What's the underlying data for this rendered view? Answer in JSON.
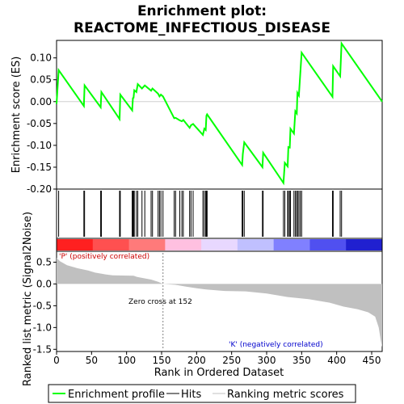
{
  "chart_data": {
    "type": "line",
    "title_line1": "Enrichment plot:",
    "title_line2": "REACTOME_INFECTIOUS_DISEASE",
    "es_panel": {
      "ylabel": "Enrichment score (ES)",
      "ylim": [
        -0.2,
        0.14
      ],
      "yticks": [
        -0.2,
        -0.15,
        -0.1,
        -0.05,
        0.0,
        0.05,
        0.1
      ],
      "ytick_labels": [
        "-0.20",
        "-0.15",
        "-0.10",
        "-0.05",
        "0.00",
        "0.05",
        "0.10"
      ],
      "line_color": "#00ff00",
      "points": [
        [
          0,
          -0.005
        ],
        [
          3,
          0.072
        ],
        [
          39,
          -0.01
        ],
        [
          40,
          0.037
        ],
        [
          63,
          -0.013
        ],
        [
          64,
          0.022
        ],
        [
          90,
          -0.04
        ],
        [
          91,
          0.016
        ],
        [
          108,
          -0.02
        ],
        [
          109,
          0.008
        ],
        [
          110,
          0.009
        ],
        [
          111,
          0.026
        ],
        [
          114,
          0.022
        ],
        [
          116,
          0.04
        ],
        [
          122,
          0.03
        ],
        [
          126,
          0.037
        ],
        [
          135,
          0.025
        ],
        [
          137,
          0.03
        ],
        [
          145,
          0.018
        ],
        [
          147,
          0.012
        ],
        [
          149,
          0.016
        ],
        [
          152,
          0.012
        ],
        [
          168,
          -0.038
        ],
        [
          170,
          -0.037
        ],
        [
          176,
          -0.043
        ],
        [
          179,
          -0.045
        ],
        [
          181,
          -0.042
        ],
        [
          190,
          -0.06
        ],
        [
          192,
          -0.054
        ],
        [
          195,
          -0.051
        ],
        [
          209,
          -0.076
        ],
        [
          211,
          -0.062
        ],
        [
          213,
          -0.065
        ],
        [
          214,
          -0.032
        ],
        [
          215,
          -0.029
        ],
        [
          265,
          -0.145
        ],
        [
          266,
          -0.12
        ],
        [
          268,
          -0.093
        ],
        [
          294,
          -0.15
        ],
        [
          295,
          -0.117
        ],
        [
          324,
          -0.186
        ],
        [
          326,
          -0.14
        ],
        [
          330,
          -0.148
        ],
        [
          331,
          -0.104
        ],
        [
          333,
          -0.105
        ],
        [
          334,
          -0.062
        ],
        [
          339,
          -0.073
        ],
        [
          341,
          -0.022
        ],
        [
          343,
          -0.027
        ],
        [
          344,
          0.02
        ],
        [
          346,
          0.014
        ],
        [
          348,
          0.063
        ],
        [
          350,
          0.112
        ],
        [
          394,
          0.011
        ],
        [
          395,
          0.081
        ],
        [
          405,
          0.058
        ],
        [
          407,
          0.133
        ],
        [
          465,
          0.0
        ]
      ]
    },
    "hits": [
      3,
      39,
      40,
      63,
      64,
      90,
      91,
      108,
      109,
      110,
      111,
      114,
      116,
      122,
      126,
      135,
      137,
      145,
      147,
      149,
      152,
      168,
      170,
      176,
      179,
      181,
      190,
      192,
      195,
      209,
      211,
      213,
      214,
      215,
      265,
      266,
      268,
      294,
      295,
      324,
      326,
      330,
      331,
      333,
      334,
      339,
      341,
      343,
      344,
      346,
      348,
      350,
      394,
      395,
      405,
      407
    ],
    "ranking_panel": {
      "ylabel": "Ranked list metric (Signal2Noise)",
      "ylim": [
        -1.55,
        0.75
      ],
      "yticks": [
        -1.5,
        -1.0,
        -0.5,
        0.0,
        0.5
      ],
      "ytick_labels": [
        "-1.5",
        "-1.0",
        "-0.5",
        "0.0",
        "0.5"
      ],
      "positive_label": "'P' (positively correlated)",
      "negative_label": "'K' (negatively correlated)",
      "zero_cross_label": "Zero cross at 152",
      "zero_cross": 152,
      "metric_profile": [
        [
          0,
          0.6
        ],
        [
          5,
          0.52
        ],
        [
          15,
          0.43
        ],
        [
          30,
          0.36
        ],
        [
          45,
          0.31
        ],
        [
          55,
          0.26
        ],
        [
          70,
          0.22
        ],
        [
          80,
          0.2
        ],
        [
          110,
          0.19
        ],
        [
          115,
          0.16
        ],
        [
          125,
          0.13
        ],
        [
          135,
          0.1
        ],
        [
          145,
          0.05
        ],
        [
          152,
          0.0
        ],
        [
          170,
          -0.02
        ],
        [
          185,
          -0.06
        ],
        [
          200,
          -0.1
        ],
        [
          215,
          -0.13
        ],
        [
          240,
          -0.16
        ],
        [
          270,
          -0.17
        ],
        [
          300,
          -0.22
        ],
        [
          330,
          -0.3
        ],
        [
          360,
          -0.35
        ],
        [
          390,
          -0.43
        ],
        [
          410,
          -0.52
        ],
        [
          430,
          -0.58
        ],
        [
          445,
          -0.65
        ],
        [
          455,
          -0.75
        ],
        [
          460,
          -1.0
        ],
        [
          463,
          -1.3
        ],
        [
          465,
          -1.45
        ]
      ]
    },
    "heatmap_band_colors": [
      "#ff2020",
      "#ff5050",
      "#ff7a7a",
      "#ffc0e0",
      "#e8d8ff",
      "#c0c0ff",
      "#8080ff",
      "#5050f0",
      "#2020d0"
    ],
    "xaxis": {
      "label": "Rank in Ordered Dataset",
      "xlim": [
        0,
        465
      ],
      "xticks": [
        0,
        50,
        100,
        150,
        200,
        250,
        300,
        350,
        400,
        450
      ],
      "xtick_labels": [
        "0",
        "50",
        "100",
        "150",
        "200",
        "250",
        "300",
        "350",
        "400",
        "450"
      ]
    },
    "legend": [
      {
        "label": "Enrichment profile",
        "color": "#00ff00",
        "icon": "green-line"
      },
      {
        "label": "Hits",
        "color": "#000000",
        "icon": "black-line"
      },
      {
        "label": "Ranking metric scores",
        "color": "#c0c0c0",
        "icon": "gray-line"
      }
    ]
  }
}
